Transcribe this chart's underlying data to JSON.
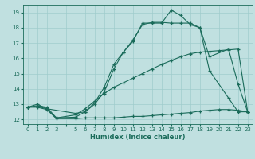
{
  "bg_color": "#c0e0e0",
  "grid_color": "#a0cccc",
  "line_color": "#1a6b5a",
  "xlabel": "Humidex (Indice chaleur)",
  "xlim": [
    -0.5,
    23.5
  ],
  "ylim": [
    11.7,
    19.5
  ],
  "yticks": [
    12,
    13,
    14,
    15,
    16,
    17,
    18,
    19
  ],
  "xtick_labels": [
    "0",
    "1",
    "2",
    "3",
    "",
    "5",
    "6",
    "7",
    "8",
    "9",
    "10",
    "11",
    "12",
    "13",
    "14",
    "15",
    "16",
    "17",
    "18",
    "19",
    "20",
    "21",
    "22",
    "23"
  ],
  "curve1_x": [
    0,
    1,
    2,
    5,
    6,
    7,
    8,
    9,
    10,
    11,
    12,
    13,
    14,
    15,
    16,
    17,
    18,
    19,
    21,
    22,
    23
  ],
  "curve1_y": [
    12.8,
    13.0,
    12.7,
    12.4,
    12.5,
    13.1,
    14.1,
    15.6,
    16.4,
    17.1,
    18.3,
    18.3,
    18.3,
    19.15,
    18.8,
    18.2,
    18.0,
    16.1,
    16.6,
    14.3,
    12.5
  ],
  "curve2_x": [
    0,
    1,
    2,
    3,
    5,
    6,
    7,
    8,
    9,
    10,
    11,
    12,
    13,
    14,
    15,
    16,
    17,
    18,
    19,
    21,
    22,
    23
  ],
  "curve2_y": [
    12.8,
    12.85,
    12.7,
    12.1,
    12.15,
    12.5,
    13.0,
    13.8,
    15.3,
    16.4,
    17.2,
    18.2,
    18.35,
    18.35,
    18.3,
    18.3,
    18.3,
    18.0,
    15.2,
    13.4,
    12.5,
    12.5
  ],
  "curve3_x": [
    0,
    1,
    2,
    3,
    5,
    6,
    7,
    8,
    9,
    10,
    11,
    12,
    13,
    14,
    15,
    16,
    17,
    18,
    19,
    20,
    21,
    22,
    23
  ],
  "curve3_y": [
    12.8,
    12.8,
    12.65,
    12.05,
    12.05,
    12.1,
    12.1,
    12.1,
    12.1,
    12.15,
    12.2,
    12.2,
    12.25,
    12.3,
    12.35,
    12.4,
    12.45,
    12.55,
    12.6,
    12.65,
    12.65,
    12.6,
    12.5
  ],
  "curve4_x": [
    0,
    1,
    2,
    3,
    5,
    6,
    7,
    8,
    9,
    10,
    11,
    12,
    13,
    14,
    15,
    16,
    17,
    18,
    19,
    20,
    21,
    22,
    23
  ],
  "curve4_y": [
    12.8,
    12.9,
    12.8,
    12.1,
    12.3,
    12.7,
    13.2,
    13.7,
    14.1,
    14.4,
    14.7,
    15.0,
    15.3,
    15.6,
    15.85,
    16.1,
    16.3,
    16.4,
    16.45,
    16.5,
    16.55,
    16.6,
    12.5
  ]
}
